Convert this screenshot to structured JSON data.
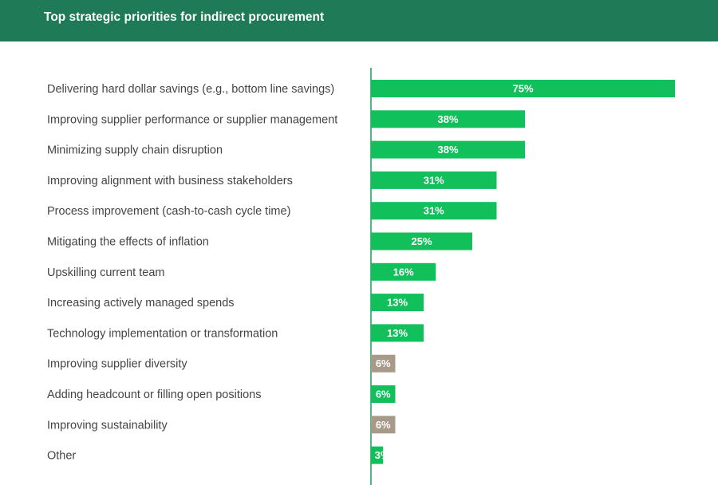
{
  "header": {
    "title": "Top strategic priorities for indirect procurement"
  },
  "colors": {
    "header_bg": "#1e7a57",
    "bar_primary": "#11c05a",
    "bar_muted": "#a89a89",
    "axis": "#1e9a5a",
    "label": "#444444"
  },
  "chart_data": {
    "type": "bar",
    "orientation": "horizontal",
    "title": "Top strategic priorities for indirect procurement",
    "xlim": [
      0,
      75
    ],
    "grid": false,
    "categories": [
      "Delivering hard dollar savings (e.g., bottom line savings)",
      "Improving supplier performance or supplier management",
      "Minimizing supply chain disruption",
      "Improving alignment with business stakeholders",
      "Process improvement (cash-to-cash cycle time)",
      "Mitigating the effects of inflation",
      "Upskilling current team",
      "Increasing actively managed spends",
      "Technology implementation or transformation",
      "Improving supplier diversity",
      "Adding headcount or filling open positions",
      "Improving sustainability",
      "Other"
    ],
    "values": [
      75,
      38,
      38,
      31,
      31,
      25,
      16,
      13,
      13,
      6,
      6,
      6,
      3
    ],
    "value_labels": [
      "75%",
      "38%",
      "38%",
      "31%",
      "31%",
      "25%",
      "16%",
      "13%",
      "13%",
      "6%",
      "6%",
      "6%",
      "3%"
    ],
    "bar_colors": [
      "#11c05a",
      "#11c05a",
      "#11c05a",
      "#11c05a",
      "#11c05a",
      "#11c05a",
      "#11c05a",
      "#11c05a",
      "#11c05a",
      "#a89a89",
      "#11c05a",
      "#a89a89",
      "#11c05a"
    ]
  }
}
